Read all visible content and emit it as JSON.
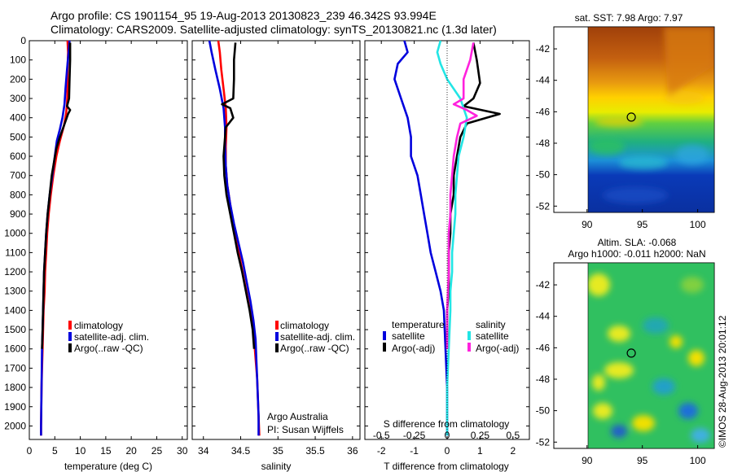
{
  "header": {
    "line1": "Argo profile: CS 1901154_95 19-Aug-2013 20130823_239 46.342S 93.994E",
    "line2": "Climatology: CARS2009. Satellite-adjusted climatology: synTS_20130821.nc (1.3d later)"
  },
  "colors": {
    "red": "#ff0000",
    "blue": "#0000dd",
    "black": "#000000",
    "cyan": "#22e5e5",
    "magenta": "#ff22dd"
  },
  "chart_data": [
    {
      "type": "line",
      "xlabel": "temperature (deg C)",
      "ylabel": "",
      "xlim": [
        0,
        31
      ],
      "ylim": [
        2070,
        0
      ],
      "xticks": [
        0,
        5,
        10,
        15,
        20,
        25,
        30
      ],
      "yticks": [
        0,
        100,
        200,
        300,
        400,
        500,
        600,
        700,
        800,
        900,
        1000,
        1100,
        1200,
        1300,
        1400,
        1500,
        1600,
        1700,
        1800,
        1900,
        2000
      ],
      "legend": [
        "climatology",
        "satellite-adj. clim.",
        "Argo(..raw -QC)"
      ],
      "legend_position": "center-right",
      "series": [
        {
          "name": "climatology",
          "color": "red",
          "points": [
            [
              7.5,
              0
            ],
            [
              7.6,
              60
            ],
            [
              7.5,
              150
            ],
            [
              7.5,
              250
            ],
            [
              7.4,
              330
            ],
            [
              7.2,
              380
            ],
            [
              6.8,
              440
            ],
            [
              6.0,
              520
            ],
            [
              5.3,
              600
            ],
            [
              4.7,
              700
            ],
            [
              4.2,
              800
            ],
            [
              3.8,
              900
            ],
            [
              3.5,
              1000
            ],
            [
              3.3,
              1100
            ],
            [
              3.1,
              1200
            ],
            [
              3.0,
              1300
            ],
            [
              2.8,
              1400
            ],
            [
              2.7,
              1500
            ],
            [
              2.6,
              1600
            ],
            [
              2.5,
              1700
            ],
            [
              2.4,
              1800
            ],
            [
              2.35,
              1900
            ],
            [
              2.3,
              2000
            ],
            [
              2.3,
              2050
            ]
          ]
        },
        {
          "name": "satellite-adj. clim.",
          "color": "blue",
          "points": [
            [
              7.9,
              0
            ],
            [
              7.7,
              60
            ],
            [
              7.4,
              150
            ],
            [
              7.1,
              250
            ],
            [
              6.9,
              330
            ],
            [
              6.5,
              400
            ],
            [
              6.0,
              460
            ],
            [
              5.4,
              520
            ],
            [
              5.0,
              600
            ],
            [
              4.5,
              700
            ],
            [
              4.0,
              800
            ],
            [
              3.6,
              900
            ],
            [
              3.3,
              1000
            ],
            [
              3.1,
              1100
            ],
            [
              2.9,
              1200
            ],
            [
              2.8,
              1300
            ],
            [
              2.7,
              1400
            ],
            [
              2.6,
              1500
            ],
            [
              2.5,
              1600
            ],
            [
              2.45,
              1700
            ],
            [
              2.4,
              1800
            ],
            [
              2.35,
              1900
            ],
            [
              2.3,
              2000
            ],
            [
              2.3,
              2050
            ]
          ]
        },
        {
          "name": "Argo(..raw -QC)",
          "color": "black",
          "points": [
            [
              8.0,
              10
            ],
            [
              8.0,
              100
            ],
            [
              7.9,
              200
            ],
            [
              7.8,
              300
            ],
            [
              7.4,
              340
            ],
            [
              8.0,
              360
            ],
            [
              7.6,
              380
            ],
            [
              6.8,
              440
            ],
            [
              6.0,
              500
            ],
            [
              5.3,
              560
            ],
            [
              4.9,
              620
            ],
            [
              4.4,
              700
            ],
            [
              4.0,
              800
            ],
            [
              3.6,
              900
            ],
            [
              3.3,
              1000
            ],
            [
              3.1,
              1100
            ],
            [
              2.9,
              1200
            ],
            [
              2.8,
              1300
            ],
            [
              2.7,
              1400
            ],
            [
              2.6,
              1500
            ],
            [
              2.5,
              1600
            ]
          ]
        }
      ]
    },
    {
      "type": "line",
      "xlabel": "salinity",
      "ylabel": "",
      "xlim": [
        33.85,
        36.1
      ],
      "ylim": [
        2070,
        0
      ],
      "xticks": [
        34,
        34.5,
        35,
        35.5,
        36
      ],
      "legend": [
        "climatology",
        "satellite-adj. clim.",
        "Argo(..raw -QC)"
      ],
      "legend_position": "center-right",
      "annotations": [
        "Argo Australia",
        "PI: Susan Wijffels"
      ],
      "series": [
        {
          "name": "climatology",
          "color": "red",
          "points": [
            [
              34.2,
              0
            ],
            [
              34.22,
              60
            ],
            [
              34.24,
              150
            ],
            [
              34.27,
              250
            ],
            [
              34.3,
              350
            ],
            [
              34.31,
              450
            ],
            [
              34.3,
              550
            ],
            [
              34.3,
              650
            ],
            [
              34.32,
              750
            ],
            [
              34.36,
              850
            ],
            [
              34.4,
              950
            ],
            [
              34.45,
              1050
            ],
            [
              34.5,
              1150
            ],
            [
              34.55,
              1250
            ],
            [
              34.6,
              1350
            ],
            [
              34.65,
              1450
            ],
            [
              34.68,
              1550
            ],
            [
              34.7,
              1650
            ],
            [
              34.72,
              1750
            ],
            [
              34.73,
              1850
            ],
            [
              34.74,
              1950
            ],
            [
              34.75,
              2050
            ]
          ]
        },
        {
          "name": "satellite-adj. clim.",
          "color": "blue",
          "points": [
            [
              34.08,
              0
            ],
            [
              34.11,
              60
            ],
            [
              34.16,
              150
            ],
            [
              34.22,
              250
            ],
            [
              34.27,
              350
            ],
            [
              34.29,
              450
            ],
            [
              34.29,
              550
            ],
            [
              34.3,
              650
            ],
            [
              34.32,
              750
            ],
            [
              34.36,
              850
            ],
            [
              34.41,
              950
            ],
            [
              34.47,
              1050
            ],
            [
              34.53,
              1150
            ],
            [
              34.58,
              1250
            ],
            [
              34.63,
              1350
            ],
            [
              34.67,
              1450
            ],
            [
              34.7,
              1550
            ],
            [
              34.71,
              1650
            ],
            [
              34.72,
              1750
            ],
            [
              34.73,
              1850
            ],
            [
              34.74,
              1950
            ],
            [
              34.74,
              2050
            ]
          ]
        },
        {
          "name": "Argo(..raw -QC)",
          "color": "black",
          "points": [
            [
              34.43,
              10
            ],
            [
              34.41,
              100
            ],
            [
              34.41,
              200
            ],
            [
              34.4,
              300
            ],
            [
              34.25,
              330
            ],
            [
              34.36,
              350
            ],
            [
              34.4,
              400
            ],
            [
              34.3,
              450
            ],
            [
              34.29,
              500
            ],
            [
              34.27,
              600
            ],
            [
              34.28,
              700
            ],
            [
              34.31,
              800
            ],
            [
              34.36,
              900
            ],
            [
              34.41,
              1000
            ],
            [
              34.46,
              1100
            ],
            [
              34.52,
              1200
            ],
            [
              34.57,
              1300
            ],
            [
              34.62,
              1400
            ],
            [
              34.66,
              1500
            ],
            [
              34.68,
              1600
            ]
          ]
        }
      ]
    },
    {
      "type": "line",
      "xlabel": "T difference from climatology",
      "xlabel_top": "S difference from climatology",
      "ylabel": "",
      "xlim": [
        -2.5,
        2.5
      ],
      "ylim": [
        2070,
        0
      ],
      "xticks": [
        -2,
        -1,
        0,
        1,
        2
      ],
      "xticks_top": [
        "-0.5",
        "-0.25",
        "0",
        "0.25",
        "0.5"
      ],
      "legend_headers": [
        "temperature",
        "salinity"
      ],
      "legend": [
        "satellite",
        "Argo(-adj)",
        "satellite",
        "Argo(-adj)"
      ],
      "legend_position": "bottom",
      "series": [
        {
          "name": "satellite",
          "group": "temperature",
          "color": "blue",
          "points": [
            [
              -1.3,
              0
            ],
            [
              -1.2,
              60
            ],
            [
              -1.5,
              120
            ],
            [
              -1.6,
              200
            ],
            [
              -1.4,
              300
            ],
            [
              -1.2,
              400
            ],
            [
              -1.1,
              500
            ],
            [
              -1.1,
              600
            ],
            [
              -0.9,
              700
            ],
            [
              -0.8,
              800
            ],
            [
              -0.7,
              900
            ],
            [
              -0.6,
              1000
            ],
            [
              -0.5,
              1100
            ],
            [
              -0.35,
              1200
            ],
            [
              -0.2,
              1300
            ],
            [
              -0.1,
              1400
            ],
            [
              -0.05,
              1600
            ],
            [
              0.0,
              1800
            ],
            [
              0.0,
              2050
            ]
          ]
        },
        {
          "name": "Argo(-adj)",
          "group": "temperature",
          "color": "black",
          "points": [
            [
              0.8,
              10
            ],
            [
              0.9,
              100
            ],
            [
              1.0,
              220
            ],
            [
              0.8,
              300
            ],
            [
              0.5,
              340
            ],
            [
              1.6,
              380
            ],
            [
              0.6,
              430
            ],
            [
              0.4,
              500
            ],
            [
              0.3,
              600
            ],
            [
              0.2,
              700
            ],
            [
              0.2,
              800
            ],
            [
              0.1,
              900
            ],
            [
              0.1,
              1000
            ],
            [
              0.05,
              1100
            ],
            [
              0.05,
              1200
            ],
            [
              0.05,
              1300
            ],
            [
              0.0,
              1400
            ],
            [
              0.0,
              1500
            ],
            [
              0.0,
              1600
            ]
          ]
        },
        {
          "name": "satellite",
          "group": "salinity",
          "color": "cyan",
          "points": [
            [
              -0.2,
              0
            ],
            [
              -0.3,
              60
            ],
            [
              -0.2,
              120
            ],
            [
              0.0,
              200
            ],
            [
              0.4,
              300
            ],
            [
              0.6,
              400
            ],
            [
              0.5,
              500
            ],
            [
              0.35,
              600
            ],
            [
              0.3,
              700
            ],
            [
              0.25,
              800
            ],
            [
              0.25,
              900
            ],
            [
              0.2,
              1000
            ],
            [
              0.15,
              1100
            ],
            [
              0.15,
              1200
            ],
            [
              0.1,
              1300
            ],
            [
              0.1,
              1400
            ],
            [
              0.05,
              1600
            ],
            [
              0.0,
              1800
            ],
            [
              0.0,
              2050
            ]
          ]
        },
        {
          "name": "Argo(-adj)",
          "group": "salinity",
          "color": "magenta",
          "points": [
            [
              0.8,
              10
            ],
            [
              0.7,
              100
            ],
            [
              0.5,
              200
            ],
            [
              0.5,
              300
            ],
            [
              0.2,
              330
            ],
            [
              0.6,
              360
            ],
            [
              0.9,
              390
            ],
            [
              0.4,
              430
            ],
            [
              0.3,
              500
            ],
            [
              0.2,
              600
            ],
            [
              0.15,
              700
            ],
            [
              0.1,
              800
            ],
            [
              0.1,
              900
            ],
            [
              0.05,
              1000
            ],
            [
              0.05,
              1200
            ],
            [
              0.0,
              1400
            ],
            [
              0.0,
              1600
            ]
          ]
        }
      ]
    },
    {
      "type": "heatmap",
      "title": "sat. SST: 7.98  Argo: 7.97",
      "xlim": [
        87,
        101.5
      ],
      "ylim": [
        -52.4,
        -40.6
      ],
      "xticks": [
        90,
        95,
        100
      ],
      "yticks": [
        -42,
        -44,
        -46,
        -48,
        -50,
        -52
      ],
      "data_x_start": 90,
      "marker": [
        94,
        -46.34
      ]
    },
    {
      "type": "heatmap",
      "title_line1": "Altim. SLA: -0.068",
      "title_line2": "Argo h1000: -0.011  h2000: NaN",
      "xlim": [
        87,
        101.5
      ],
      "ylim": [
        -52.4,
        -40.6
      ],
      "xticks": [
        90,
        95,
        100
      ],
      "yticks": [
        -42,
        -44,
        -46,
        -48,
        -50,
        -52
      ],
      "data_x_start": 90,
      "marker": [
        94,
        -46.34
      ]
    }
  ],
  "footer": {
    "vertical_text": "©IMOS 28-Aug-2013 20:01:12"
  }
}
